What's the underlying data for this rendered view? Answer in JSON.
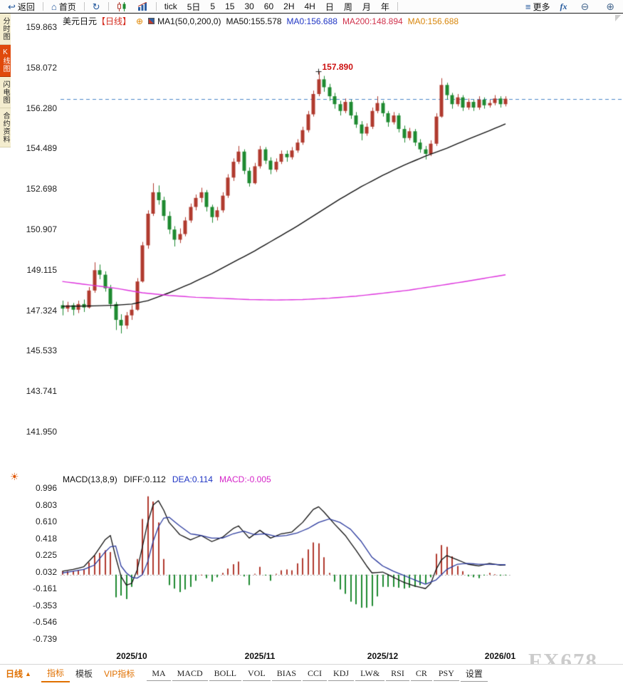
{
  "toolbar": {
    "items": [
      {
        "id": "back",
        "icon": "↩",
        "label": "返回",
        "group_end": true
      },
      {
        "id": "home",
        "icon": "⌂",
        "label": "首页",
        "group_end": true
      },
      {
        "id": "refresh",
        "icon": "↻",
        "label": "",
        "group_end": true
      },
      {
        "id": "kline-type",
        "icon": "candles",
        "label": "",
        "group_end": false
      },
      {
        "id": "volume-type",
        "icon": "bars",
        "label": "",
        "group_end": true
      },
      {
        "id": "tick",
        "icon": "",
        "label": "tick",
        "group_end": false
      },
      {
        "id": "period-5d",
        "icon": "",
        "label": "5日",
        "group_end": false
      },
      {
        "id": "period-5",
        "icon": "",
        "label": "5",
        "group_end": false
      },
      {
        "id": "period-15",
        "icon": "",
        "label": "15",
        "group_end": false
      },
      {
        "id": "period-30",
        "icon": "",
        "label": "30",
        "group_end": false
      },
      {
        "id": "period-60",
        "icon": "",
        "label": "60",
        "group_end": false
      },
      {
        "id": "period-2h",
        "icon": "",
        "label": "2H",
        "group_end": false
      },
      {
        "id": "period-4h",
        "icon": "",
        "label": "4H",
        "group_end": false
      },
      {
        "id": "period-day",
        "icon": "",
        "label": "日",
        "group_end": false
      },
      {
        "id": "period-week",
        "icon": "",
        "label": "周",
        "group_end": false
      },
      {
        "id": "period-month",
        "icon": "",
        "label": "月",
        "group_end": false
      },
      {
        "id": "period-year",
        "icon": "",
        "label": "年",
        "group_end": true
      },
      {
        "id": "more",
        "icon": "≡",
        "label": "更多",
        "group_end": false
      },
      {
        "id": "fx",
        "icon": "",
        "label": "fx",
        "group_end": false
      },
      {
        "id": "zoom-out",
        "icon": "⊖",
        "label": "",
        "group_end": false
      },
      {
        "id": "zoom-in",
        "icon": "⊕",
        "label": "",
        "group_end": false
      }
    ]
  },
  "sidebar": {
    "items": [
      {
        "id": "time-chart",
        "label": "分时图",
        "active": false
      },
      {
        "id": "kline-chart",
        "label": "K线图",
        "active": true
      },
      {
        "id": "lightning-chart",
        "label": "闪电图",
        "active": false
      },
      {
        "id": "contract-info",
        "label": "合约资料",
        "active": false
      }
    ]
  },
  "chart_header": {
    "symbol": "美元日元",
    "period": "【日线】",
    "add_icon": "⊕",
    "ma_label": "MA1(50,0,200,0)",
    "ma50": "MA50:155.578",
    "ma0_blue": "MA0:156.688",
    "ma200": "MA200:148.894",
    "ma0_orange": "MA0:156.688"
  },
  "macd_header": {
    "label": "MACD(13,8,9)",
    "diff": "DIFF:0.112",
    "dea": "DEA:0.114",
    "macd": "MACD:-0.005"
  },
  "bottombar": {
    "period": {
      "label": "日线",
      "arrow": "▲"
    },
    "tabs": [
      {
        "id": "indicators",
        "label": "指标",
        "accent": true,
        "active": true
      },
      {
        "id": "templates",
        "label": "模板",
        "accent": false,
        "active": false
      },
      {
        "id": "vip-indicators",
        "label": "VIP指标",
        "accent": true,
        "active": false
      }
    ],
    "indicators": [
      "MA",
      "MACD",
      "BOLL",
      "VOL",
      "BIAS",
      "CCI",
      "KDJ",
      "LW&",
      "RSI",
      "CR",
      "PSY"
    ],
    "settings": "设置"
  },
  "watermark": "FX678",
  "chart_data": {
    "type": "candlestick",
    "symbol": "美元日元",
    "period": "日线",
    "price_axis_ticks": [
      "159.863",
      "158.072",
      "156.280",
      "154.489",
      "152.698",
      "150.907",
      "149.115",
      "147.324",
      "145.533",
      "143.741",
      "141.950"
    ],
    "macd_axis_ticks": [
      "0.996",
      "0.803",
      "0.610",
      "0.418",
      "0.225",
      "0.032",
      "-0.161",
      "-0.353",
      "-0.546",
      "-0.739"
    ],
    "x_labels": [
      {
        "label": "2025/10",
        "index": 13
      },
      {
        "label": "2025/11",
        "index": 37
      },
      {
        "label": "2025/12",
        "index": 60
      },
      {
        "label": "2026/01",
        "index": 82
      }
    ],
    "current_price": 156.688,
    "annotation": {
      "text": "157.890",
      "price": 157.89,
      "index": 48
    },
    "candles": [
      [
        147.55,
        147.75,
        147.1,
        147.4
      ],
      [
        147.4,
        147.7,
        147.25,
        147.55
      ],
      [
        147.55,
        147.65,
        147.1,
        147.35
      ],
      [
        147.35,
        147.75,
        147.2,
        147.6
      ],
      [
        147.6,
        147.8,
        147.25,
        147.45
      ],
      [
        147.45,
        148.35,
        147.4,
        148.2
      ],
      [
        148.2,
        149.45,
        148.1,
        149.1
      ],
      [
        149.1,
        149.35,
        148.7,
        148.9
      ],
      [
        148.9,
        149.05,
        148.15,
        148.3
      ],
      [
        148.3,
        148.45,
        147.4,
        147.6
      ],
      [
        147.6,
        147.7,
        146.45,
        146.9
      ],
      [
        146.9,
        147.15,
        146.3,
        146.65
      ],
      [
        146.65,
        147.25,
        146.5,
        147.1
      ],
      [
        147.1,
        147.55,
        146.9,
        147.35
      ],
      [
        147.35,
        148.75,
        147.3,
        148.6
      ],
      [
        148.6,
        150.35,
        148.55,
        150.2
      ],
      [
        150.2,
        151.75,
        150.05,
        151.6
      ],
      [
        151.6,
        152.95,
        151.5,
        152.55
      ],
      [
        152.55,
        152.85,
        152.0,
        152.2
      ],
      [
        152.2,
        152.35,
        151.3,
        151.5
      ],
      [
        151.5,
        151.7,
        150.7,
        150.9
      ],
      [
        150.9,
        151.05,
        150.15,
        150.45
      ],
      [
        150.45,
        150.95,
        150.3,
        150.7
      ],
      [
        150.7,
        151.45,
        150.6,
        151.3
      ],
      [
        151.3,
        152.05,
        151.2,
        151.9
      ],
      [
        151.9,
        152.45,
        151.75,
        152.3
      ],
      [
        152.3,
        152.75,
        152.1,
        152.55
      ],
      [
        152.55,
        152.65,
        151.7,
        151.9
      ],
      [
        151.9,
        152.0,
        151.2,
        151.45
      ],
      [
        151.45,
        151.9,
        151.3,
        151.75
      ],
      [
        151.75,
        152.55,
        151.65,
        152.4
      ],
      [
        152.4,
        153.35,
        152.3,
        153.2
      ],
      [
        153.2,
        154.05,
        153.05,
        153.9
      ],
      [
        153.9,
        154.6,
        153.8,
        154.35
      ],
      [
        154.35,
        154.45,
        153.35,
        153.5
      ],
      [
        153.5,
        153.65,
        152.8,
        152.95
      ],
      [
        152.95,
        153.85,
        152.9,
        153.7
      ],
      [
        153.7,
        154.6,
        153.6,
        154.45
      ],
      [
        154.45,
        154.55,
        153.8,
        153.95
      ],
      [
        153.95,
        154.1,
        153.35,
        153.55
      ],
      [
        153.55,
        154.05,
        153.45,
        153.9
      ],
      [
        153.9,
        154.4,
        153.8,
        154.25
      ],
      [
        154.25,
        154.4,
        153.9,
        154.1
      ],
      [
        154.1,
        154.55,
        154.0,
        154.4
      ],
      [
        154.4,
        154.9,
        154.3,
        154.75
      ],
      [
        154.75,
        155.45,
        154.65,
        155.3
      ],
      [
        155.3,
        156.15,
        155.2,
        156.0
      ],
      [
        156.0,
        157.05,
        155.9,
        156.9
      ],
      [
        156.9,
        157.89,
        156.8,
        157.55
      ],
      [
        157.55,
        157.7,
        157.0,
        157.2
      ],
      [
        157.2,
        157.35,
        156.6,
        156.8
      ],
      [
        156.8,
        156.95,
        156.25,
        156.45
      ],
      [
        156.45,
        156.6,
        155.95,
        156.15
      ],
      [
        156.15,
        156.7,
        156.05,
        156.55
      ],
      [
        156.55,
        156.65,
        155.8,
        155.95
      ],
      [
        155.95,
        156.1,
        155.4,
        155.55
      ],
      [
        155.55,
        155.7,
        154.85,
        155.15
      ],
      [
        155.15,
        155.6,
        155.05,
        155.45
      ],
      [
        155.45,
        156.3,
        155.35,
        156.15
      ],
      [
        156.15,
        156.8,
        156.05,
        156.5
      ],
      [
        156.5,
        156.6,
        155.9,
        156.05
      ],
      [
        156.05,
        156.15,
        155.45,
        155.65
      ],
      [
        155.65,
        156.1,
        155.55,
        155.95
      ],
      [
        155.95,
        156.05,
        155.2,
        155.35
      ],
      [
        155.35,
        155.5,
        154.75,
        154.95
      ],
      [
        154.95,
        155.4,
        154.85,
        155.25
      ],
      [
        155.25,
        155.35,
        154.6,
        154.75
      ],
      [
        154.75,
        154.9,
        154.3,
        154.45
      ],
      [
        154.45,
        154.6,
        154.0,
        154.25
      ],
      [
        154.25,
        154.85,
        154.15,
        154.7
      ],
      [
        154.7,
        156.05,
        154.6,
        155.9
      ],
      [
        155.9,
        157.6,
        155.85,
        157.3
      ],
      [
        157.3,
        157.4,
        156.65,
        156.85
      ],
      [
        156.85,
        156.95,
        156.25,
        156.45
      ],
      [
        156.45,
        156.9,
        156.35,
        156.75
      ],
      [
        156.75,
        156.85,
        156.15,
        156.3
      ],
      [
        156.3,
        156.7,
        156.2,
        156.55
      ],
      [
        156.55,
        156.65,
        156.15,
        156.3
      ],
      [
        156.3,
        156.8,
        156.2,
        156.65
      ],
      [
        156.65,
        156.75,
        156.25,
        156.4
      ],
      [
        156.4,
        156.65,
        156.3,
        156.5
      ],
      [
        156.5,
        156.85,
        156.4,
        156.7
      ],
      [
        156.7,
        156.8,
        156.3,
        156.45
      ],
      [
        156.45,
        156.8,
        156.35,
        156.69
      ]
    ],
    "ma50_points": [
      [
        0,
        147.5
      ],
      [
        6,
        147.52
      ],
      [
        10,
        147.55
      ],
      [
        13,
        147.6
      ],
      [
        16,
        147.75
      ],
      [
        20,
        148.1
      ],
      [
        24,
        148.5
      ],
      [
        28,
        148.95
      ],
      [
        32,
        149.45
      ],
      [
        36,
        149.95
      ],
      [
        40,
        150.5
      ],
      [
        44,
        151.05
      ],
      [
        48,
        151.65
      ],
      [
        52,
        152.25
      ],
      [
        56,
        152.8
      ],
      [
        60,
        153.3
      ],
      [
        64,
        153.75
      ],
      [
        68,
        154.15
      ],
      [
        72,
        154.5
      ],
      [
        76,
        154.9
      ],
      [
        80,
        155.28
      ],
      [
        83,
        155.578
      ]
    ],
    "ma200_points": [
      [
        0,
        148.6
      ],
      [
        5,
        148.45
      ],
      [
        10,
        148.3
      ],
      [
        15,
        148.1
      ],
      [
        20,
        147.98
      ],
      [
        25,
        147.9
      ],
      [
        30,
        147.85
      ],
      [
        35,
        147.8
      ],
      [
        40,
        147.78
      ],
      [
        45,
        147.8
      ],
      [
        50,
        147.86
      ],
      [
        55,
        147.95
      ],
      [
        60,
        148.08
      ],
      [
        65,
        148.22
      ],
      [
        70,
        148.4
      ],
      [
        75,
        148.58
      ],
      [
        80,
        148.78
      ],
      [
        83,
        148.894
      ]
    ],
    "macd": {
      "params": [
        13,
        8,
        9
      ],
      "hist_scale": 2,
      "diff_points": [
        [
          0,
          0.04
        ],
        [
          2,
          0.06
        ],
        [
          4,
          0.09
        ],
        [
          6,
          0.22
        ],
        [
          8,
          0.4
        ],
        [
          9,
          0.45
        ],
        [
          10,
          0.2
        ],
        [
          11,
          -0.02
        ],
        [
          12,
          -0.12
        ],
        [
          13,
          -0.1
        ],
        [
          14,
          0.05
        ],
        [
          15,
          0.32
        ],
        [
          16,
          0.6
        ],
        [
          17,
          0.8
        ],
        [
          18,
          0.85
        ],
        [
          19,
          0.74
        ],
        [
          20,
          0.6
        ],
        [
          22,
          0.46
        ],
        [
          24,
          0.4
        ],
        [
          26,
          0.45
        ],
        [
          28,
          0.38
        ],
        [
          30,
          0.43
        ],
        [
          32,
          0.53
        ],
        [
          33,
          0.56
        ],
        [
          35,
          0.42
        ],
        [
          37,
          0.51
        ],
        [
          39,
          0.42
        ],
        [
          41,
          0.47
        ],
        [
          43,
          0.49
        ],
        [
          45,
          0.6
        ],
        [
          47,
          0.75
        ],
        [
          48,
          0.78
        ],
        [
          49,
          0.72
        ],
        [
          51,
          0.58
        ],
        [
          53,
          0.45
        ],
        [
          55,
          0.28
        ],
        [
          57,
          0.1
        ],
        [
          58,
          0.02
        ],
        [
          60,
          0.03
        ],
        [
          62,
          -0.03
        ],
        [
          64,
          -0.09
        ],
        [
          66,
          -0.13
        ],
        [
          68,
          -0.16
        ],
        [
          69,
          -0.1
        ],
        [
          70,
          0.06
        ],
        [
          71,
          0.17
        ],
        [
          72,
          0.22
        ],
        [
          74,
          0.17
        ],
        [
          76,
          0.12
        ],
        [
          78,
          0.1
        ],
        [
          80,
          0.13
        ],
        [
          82,
          0.11
        ],
        [
          83,
          0.112
        ]
      ],
      "dea_points": [
        [
          0,
          0.02
        ],
        [
          4,
          0.06
        ],
        [
          6,
          0.11
        ],
        [
          8,
          0.26
        ],
        [
          9,
          0.32
        ],
        [
          10,
          0.33
        ],
        [
          11,
          0.1
        ],
        [
          12,
          0.02
        ],
        [
          13,
          -0.03
        ],
        [
          14,
          -0.04
        ],
        [
          15,
          0.0
        ],
        [
          16,
          0.15
        ],
        [
          17,
          0.38
        ],
        [
          18,
          0.55
        ],
        [
          19,
          0.65
        ],
        [
          20,
          0.66
        ],
        [
          22,
          0.56
        ],
        [
          24,
          0.47
        ],
        [
          26,
          0.45
        ],
        [
          28,
          0.42
        ],
        [
          30,
          0.42
        ],
        [
          32,
          0.47
        ],
        [
          34,
          0.5
        ],
        [
          36,
          0.46
        ],
        [
          38,
          0.47
        ],
        [
          40,
          0.44
        ],
        [
          42,
          0.45
        ],
        [
          44,
          0.48
        ],
        [
          46,
          0.53
        ],
        [
          48,
          0.6
        ],
        [
          50,
          0.64
        ],
        [
          52,
          0.6
        ],
        [
          54,
          0.52
        ],
        [
          56,
          0.38
        ],
        [
          58,
          0.2
        ],
        [
          60,
          0.1
        ],
        [
          62,
          0.04
        ],
        [
          64,
          -0.01
        ],
        [
          66,
          -0.06
        ],
        [
          68,
          -0.11
        ],
        [
          70,
          -0.06
        ],
        [
          72,
          0.06
        ],
        [
          74,
          0.12
        ],
        [
          76,
          0.13
        ],
        [
          78,
          0.12
        ],
        [
          80,
          0.12
        ],
        [
          83,
          0.114
        ]
      ]
    },
    "colors": {
      "up": "#b03a2e",
      "down": "#1e8a30",
      "ma50": "#111111",
      "ma200": "#dd33dd",
      "diff": "#111111",
      "dea": "#2b3a9e",
      "price_line": "#4a86c8"
    }
  }
}
